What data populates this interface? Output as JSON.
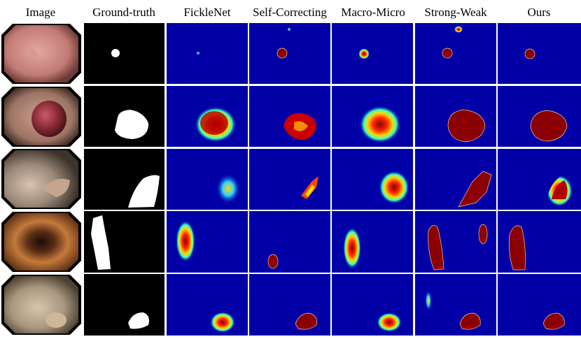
{
  "columns": [
    "Image",
    "Ground-truth",
    "FickleNet",
    "Self-Correcting",
    "Macro-Micro",
    "Strong-Weak",
    "Ours"
  ],
  "rows": [
    {
      "row": 1,
      "content": "small polyp on pinkish mucosa"
    },
    {
      "row": 2,
      "content": "large red lobulated polyp"
    },
    {
      "row": 3,
      "content": "flat lesion on pale mucosa"
    },
    {
      "row": 4,
      "content": "colon lumen with orange folds"
    },
    {
      "row": 5,
      "content": "sessile polyp in pale mucosa"
    }
  ],
  "colors": {
    "heatmap_background": "#0000a6",
    "mask_white": "#ffffff",
    "mask_black": "#000000",
    "prediction_red": "#8b0000",
    "grid_lines": "#ffffff"
  }
}
